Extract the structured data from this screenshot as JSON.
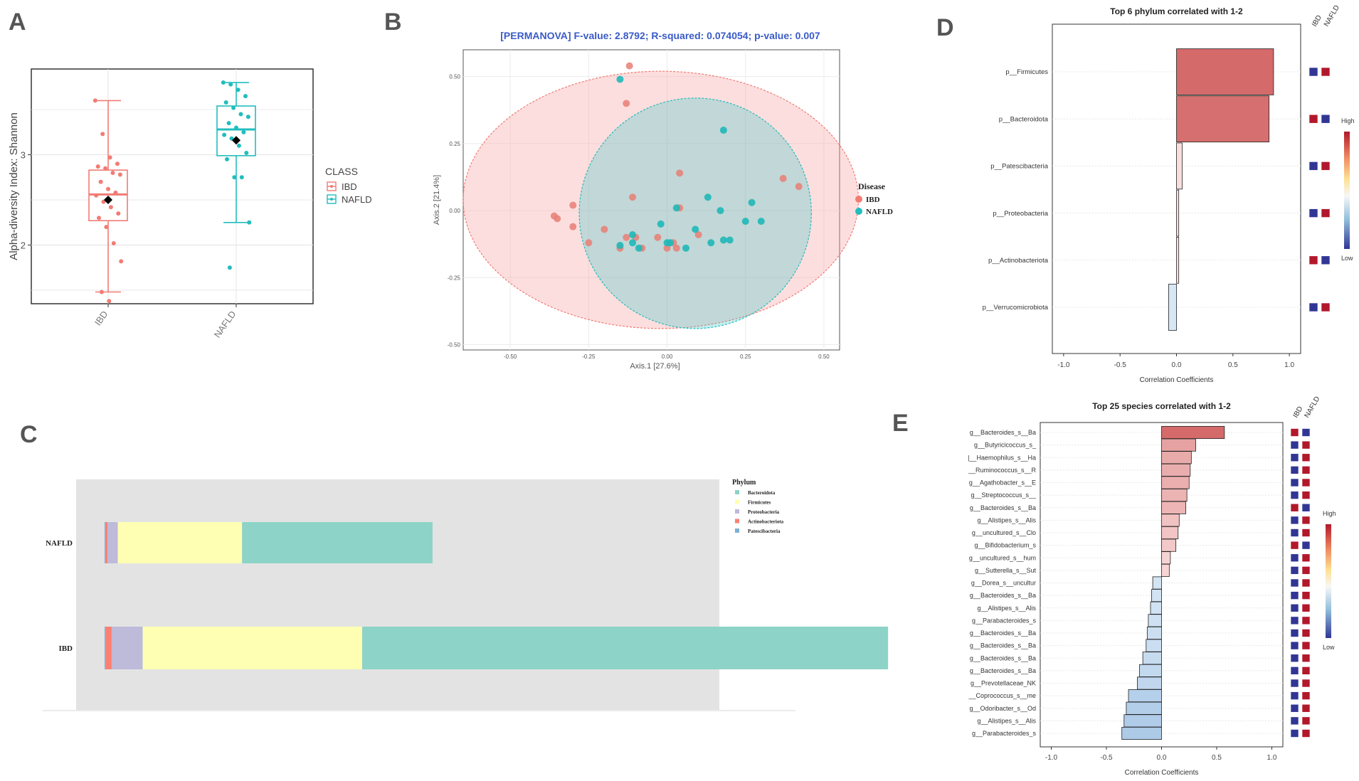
{
  "panel_labels": [
    "A",
    "B",
    "C",
    "D",
    "E"
  ],
  "colors": {
    "ibd": "#f07c74",
    "nafld": "#22bdbd",
    "bacteroidota": "#8dd3c7",
    "firmicutes": "#ffffb3",
    "proteobacteria": "#bebada",
    "actinobacteriota": "#fb8072",
    "patescibacteria": "#80b1d3"
  },
  "chart_data": [
    {
      "id": "A",
      "type": "box",
      "title": "",
      "ylabel": "Alpha-diversity Index: Shannon",
      "xlabel": "",
      "categories": [
        "IBD",
        "NAFLD"
      ],
      "ylim": [
        1.35,
        3.95
      ],
      "yticks": [
        2,
        3
      ],
      "legend": {
        "title": "CLASS",
        "entries": [
          "IBD",
          "NAFLD"
        ],
        "placement": "right"
      },
      "boxes": [
        {
          "name": "IBD",
          "min": 1.48,
          "q1": 2.27,
          "median": 2.56,
          "q3": 2.83,
          "max": 3.6,
          "mean": 2.5,
          "points": [
            3.6,
            3.23,
            2.97,
            2.9,
            2.87,
            2.85,
            2.8,
            2.78,
            2.7,
            2.62,
            2.58,
            2.55,
            2.48,
            2.42,
            2.35,
            2.3,
            2.2,
            2.02,
            1.82,
            1.48,
            1.38
          ]
        },
        {
          "name": "NAFLD",
          "min": 2.25,
          "q1": 2.99,
          "median": 3.28,
          "q3": 3.54,
          "max": 3.8,
          "mean": 3.16,
          "points": [
            3.8,
            3.78,
            3.72,
            3.65,
            3.58,
            3.52,
            3.45,
            3.42,
            3.35,
            3.3,
            3.25,
            3.22,
            3.18,
            3.1,
            3.02,
            2.95,
            2.75,
            2.75,
            2.25,
            1.75
          ]
        }
      ]
    },
    {
      "id": "B",
      "type": "scatter",
      "title": "[PERMANOVA] F-value: 2.8792; R-squared: 0.074054; p-value: 0.007",
      "xlabel": "Axis.1  [27.6%]",
      "ylabel": "Axis.2  [21.4%]",
      "xlim": [
        -0.65,
        0.55
      ],
      "ylim": [
        -0.52,
        0.6
      ],
      "xticks": [
        -0.5,
        -0.25,
        0,
        0.25,
        0.5
      ],
      "xticklabels": [
        "-0.50",
        "-0.25",
        "0.00",
        "0.25",
        "0.50"
      ],
      "yticks": [
        -0.5,
        -0.25,
        0,
        0.25,
        0.5
      ],
      "yticklabels": [
        "-0.50",
        "-0.25",
        "0.00",
        "0.25",
        "0.50"
      ],
      "legend": {
        "title": "Disease",
        "entries": [
          "IBD",
          "NAFLD"
        ],
        "placement": "right"
      },
      "series": [
        {
          "name": "IBD",
          "points": [
            [
              -0.12,
              0.54
            ],
            [
              -0.13,
              0.4
            ],
            [
              -0.36,
              -0.02
            ],
            [
              -0.35,
              -0.03
            ],
            [
              -0.3,
              0.02
            ],
            [
              -0.3,
              -0.06
            ],
            [
              -0.25,
              -0.12
            ],
            [
              -0.2,
              -0.07
            ],
            [
              -0.15,
              -0.14
            ],
            [
              -0.13,
              -0.1
            ],
            [
              -0.11,
              0.05
            ],
            [
              -0.1,
              -0.1
            ],
            [
              -0.08,
              -0.14
            ],
            [
              -0.03,
              -0.1
            ],
            [
              0.0,
              -0.14
            ],
            [
              0.02,
              -0.12
            ],
            [
              0.03,
              -0.14
            ],
            [
              0.04,
              0.14
            ],
            [
              0.04,
              0.01
            ],
            [
              0.1,
              -0.09
            ],
            [
              0.37,
              0.12
            ],
            [
              0.42,
              0.09
            ]
          ]
        },
        {
          "name": "NAFLD",
          "points": [
            [
              -0.15,
              0.49
            ],
            [
              0.18,
              0.3
            ],
            [
              -0.15,
              -0.13
            ],
            [
              -0.11,
              -0.12
            ],
            [
              -0.11,
              -0.09
            ],
            [
              -0.09,
              -0.14
            ],
            [
              -0.02,
              -0.05
            ],
            [
              0.0,
              -0.12
            ],
            [
              0.01,
              -0.12
            ],
            [
              0.03,
              0.01
            ],
            [
              0.06,
              -0.14
            ],
            [
              0.09,
              -0.07
            ],
            [
              0.13,
              0.05
            ],
            [
              0.14,
              -0.12
            ],
            [
              0.17,
              0.0
            ],
            [
              0.18,
              -0.11
            ],
            [
              0.2,
              -0.11
            ],
            [
              0.25,
              -0.04
            ],
            [
              0.27,
              0.03
            ],
            [
              0.3,
              -0.04
            ]
          ]
        }
      ],
      "ellipses": [
        {
          "name": "IBD",
          "center": [
            -0.02,
            0.04
          ],
          "rx": 0.63,
          "ry": 0.48
        },
        {
          "name": "NAFLD",
          "center": [
            0.09,
            -0.01
          ],
          "rx": 0.37,
          "ry": 0.43
        }
      ]
    },
    {
      "id": "C",
      "type": "bar",
      "orientation": "horizontal-stacked",
      "categories": [
        "NAFLD",
        "IBD"
      ],
      "series": [
        {
          "name": "Bacteroidota",
          "values": [
            0.46,
            1.27
          ]
        },
        {
          "name": "Firmicutes",
          "values": [
            0.3,
            0.53
          ]
        },
        {
          "name": "Proteobacteria",
          "values": [
            0.025,
            0.075
          ]
        },
        {
          "name": "Actinobacteriota",
          "values": [
            0.005,
            0.015
          ]
        },
        {
          "name": "Patescibacteria",
          "values": [
            0.002,
            0.002
          ]
        }
      ],
      "legend": {
        "title": "Phylum",
        "entries": [
          "Bacteroidota",
          "Firmicutes",
          "Proteobacteria",
          "Actinobacteriota",
          "Patescibacteria"
        ],
        "placement": "right"
      }
    },
    {
      "id": "D",
      "type": "bar",
      "orientation": "horizontal",
      "title": "Top 6 phylum correlated with 1-2",
      "xlabel": "Correlation Coefficients",
      "xlim": [
        -1.1,
        1.1
      ],
      "xticks": [
        -1.0,
        -0.5,
        0.0,
        0.5,
        1.0
      ],
      "xticklabels": [
        "-1.0",
        "-0.5",
        "0.0",
        "0.5",
        "1.0"
      ],
      "categories": [
        "p__Firmicutes",
        "p__Bacteroidota",
        "p__Patescibacteria",
        "p__Proteobacteria",
        "p__Actinobacteriota",
        "p__Verrucomicrobiota"
      ],
      "values": [
        0.86,
        0.82,
        0.05,
        0.02,
        0.02,
        -0.07
      ],
      "heatmap": {
        "columns": [
          "IBD",
          "NAFLD"
        ],
        "cells": [
          [
            "Low",
            "High"
          ],
          [
            "High",
            "Low"
          ],
          [
            "Low",
            "High"
          ],
          [
            "Low",
            "High"
          ],
          [
            "High",
            "Low"
          ],
          [
            "Low",
            "High"
          ]
        ]
      },
      "colorbar": {
        "high": "High",
        "low": "Low"
      }
    },
    {
      "id": "E",
      "type": "bar",
      "orientation": "horizontal",
      "title": "Top 25 species correlated with 1-2",
      "xlabel": "Correlation Coefficients",
      "xlim": [
        -1.1,
        1.1
      ],
      "xticks": [
        -1.0,
        -0.5,
        0.0,
        0.5,
        1.0
      ],
      "xticklabels": [
        "-1.0",
        "-0.5",
        "0.0",
        "0.5",
        "1.0"
      ],
      "categories": [
        "g__Bacteroides_s__Ba",
        "g__Butyricicoccus_s_",
        "|__Haemophilus_s__Ha",
        "__Ruminococcus_s__R",
        "g__Agathobacter_s__E",
        "g__Streptococcus_s__",
        "g__Bacteroides_s__Ba",
        "g__Alistipes_s__Alis",
        "g__uncultured_s__Clo",
        "g__Bifidobacterium_s",
        "g__uncultured_s__hum",
        "g__Sutterella_s__Sut",
        "g__Dorea_s__uncultur",
        "g__Bacteroides_s__Ba",
        "g__Alistipes_s__Alis",
        "g__Parabacteroides_s",
        "g__Bacteroides_s__Ba",
        "g__Bacteroides_s__Ba",
        "g__Bacteroides_s__Ba",
        "g__Bacteroides_s__Ba",
        "g__Prevotellaceae_NK",
        "__Coprococcus_s__me",
        "g__Odoribacter_s__Od",
        "g__Alistipes_s__Alis",
        "g__Parabacteroides_s"
      ],
      "values": [
        0.57,
        0.31,
        0.27,
        0.26,
        0.25,
        0.23,
        0.22,
        0.16,
        0.15,
        0.13,
        0.08,
        0.07,
        -0.08,
        -0.09,
        -0.1,
        -0.12,
        -0.13,
        -0.14,
        -0.17,
        -0.2,
        -0.22,
        -0.3,
        -0.32,
        -0.34,
        -0.36
      ],
      "heatmap": {
        "columns": [
          "IBD",
          "NAFLD"
        ],
        "cells": [
          [
            "High",
            "Low"
          ],
          [
            "Low",
            "High"
          ],
          [
            "Low",
            "High"
          ],
          [
            "Low",
            "High"
          ],
          [
            "Low",
            "High"
          ],
          [
            "Low",
            "High"
          ],
          [
            "High",
            "Low"
          ],
          [
            "Low",
            "High"
          ],
          [
            "Low",
            "High"
          ],
          [
            "High",
            "Low"
          ],
          [
            "Low",
            "High"
          ],
          [
            "Low",
            "High"
          ],
          [
            "Low",
            "High"
          ],
          [
            "Low",
            "High"
          ],
          [
            "Low",
            "High"
          ],
          [
            "Low",
            "High"
          ],
          [
            "Low",
            "High"
          ],
          [
            "Low",
            "High"
          ],
          [
            "Low",
            "High"
          ],
          [
            "Low",
            "High"
          ],
          [
            "Low",
            "High"
          ],
          [
            "Low",
            "High"
          ],
          [
            "Low",
            "High"
          ],
          [
            "Low",
            "High"
          ],
          [
            "Low",
            "High"
          ]
        ]
      },
      "colorbar": {
        "high": "High",
        "low": "Low"
      }
    }
  ]
}
